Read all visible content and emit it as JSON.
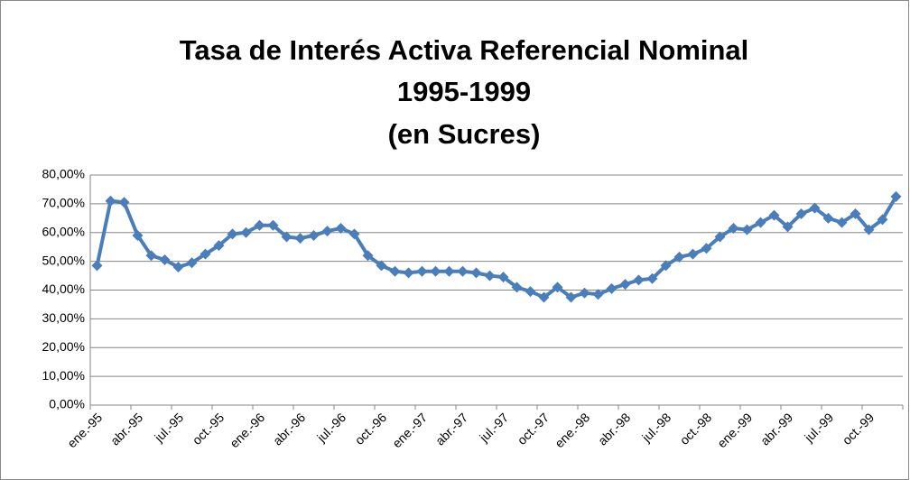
{
  "chart_data": {
    "type": "line",
    "title": [
      "Tasa de Interés Activa Referencial Nominal",
      "1995-1999",
      "(en Sucres)"
    ],
    "categories": [
      "ene.-95",
      null,
      null,
      "abr.-95",
      null,
      null,
      "jul.-95",
      null,
      null,
      "oct.-95",
      null,
      null,
      "ene.-96",
      null,
      null,
      "abr.-96",
      null,
      null,
      "jul.-96",
      null,
      null,
      "oct.-96",
      null,
      null,
      "ene.-97",
      null,
      null,
      "abr.-97",
      null,
      null,
      "jul.-97",
      null,
      null,
      "oct.-97",
      null,
      null,
      "ene.-98",
      null,
      null,
      "abr.-98",
      null,
      null,
      "jul.-98",
      null,
      null,
      "oct.-98",
      null,
      null,
      "ene.-99",
      null,
      null,
      "abr.-99",
      null,
      null,
      "jul.-99",
      null,
      null,
      "oct.-99",
      null,
      null
    ],
    "values": [
      48.5,
      71,
      70.5,
      59,
      52,
      50.5,
      48,
      49.5,
      52.5,
      55.5,
      59.5,
      60,
      62.5,
      62.5,
      58.5,
      58,
      59,
      60.5,
      61.5,
      59.5,
      52,
      48.5,
      46.5,
      46,
      46.5,
      46.5,
      46.5,
      46.5,
      46,
      45,
      44.5,
      41,
      39.5,
      37.5,
      41,
      37.5,
      39,
      38.5,
      40.5,
      42,
      43.5,
      44,
      48.5,
      51.5,
      52.5,
      54.5,
      58.5,
      61.5,
      61,
      63.5,
      66,
      62,
      66.5,
      68.5,
      65,
      63.5,
      66.5,
      61,
      64.5,
      72.5
    ],
    "color": "#4a7ebb",
    "ylim": [
      0,
      80
    ],
    "yticks": [
      {
        "value": 0,
        "label": "0,00%"
      },
      {
        "value": 10,
        "label": "10,00%"
      },
      {
        "value": 20,
        "label": "20,00%"
      },
      {
        "value": 30,
        "label": "30,00%"
      },
      {
        "value": 40,
        "label": "40,00%"
      },
      {
        "value": 50,
        "label": "50,00%"
      },
      {
        "value": 60,
        "label": "60,00%"
      },
      {
        "value": 70,
        "label": "70,00%"
      },
      {
        "value": 80,
        "label": "80,00%"
      }
    ],
    "grid": true
  }
}
